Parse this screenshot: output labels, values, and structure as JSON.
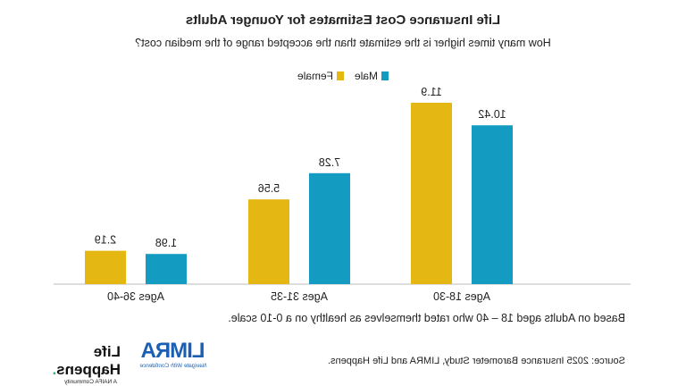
{
  "chart_data": {
    "type": "bar",
    "title": "Life Insurance Cost Estimates for Younger Adults",
    "subtitle": "How many times higher is the estimate than the accepted range of the median cost?",
    "categories": [
      "Ages 18-30",
      "Ages 31-35",
      "Ages 36-40"
    ],
    "series": [
      {
        "name": "Male",
        "color": "#149bc2",
        "values": [
          10.42,
          7.28,
          1.98
        ]
      },
      {
        "name": "Female",
        "color": "#e5b712",
        "values": [
          11.9,
          5.56,
          2.19
        ]
      }
    ],
    "data_labels": [
      [
        "10.42",
        "7.28",
        "1.98"
      ],
      [
        "11.9",
        "5.56",
        "2.19"
      ]
    ],
    "legend_position": "top",
    "grid": false,
    "ylim": [
      0,
      12
    ]
  },
  "footnote": "Based on Adults aged 18 – 40 who rated themselves as healthy on a 0-10 scale.",
  "source": "Source: 2025 Insurance Barometer Study, LIMRA and Life Happens.",
  "logos": {
    "limra": {
      "name": "LIMRA",
      "tagline": "Navigate With Confidence"
    },
    "life_happens": {
      "name": "Life Happens",
      "tagline": "A NAIFA Community"
    }
  }
}
